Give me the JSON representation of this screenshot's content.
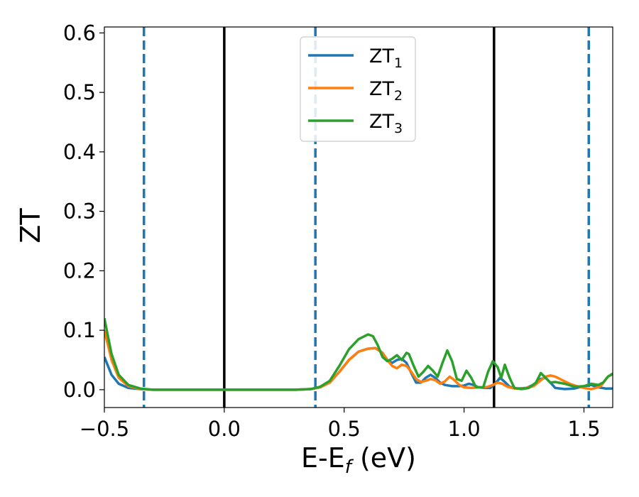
{
  "chart_data": {
    "type": "line",
    "title": "",
    "xlabel": {
      "main": "E-E",
      "sub": "f",
      "suffix": " (eV)"
    },
    "ylabel": "ZT",
    "xlim": [
      -0.5,
      1.62
    ],
    "ylim": [
      -0.03,
      0.61
    ],
    "x_ticks": [
      {
        "value": -0.5,
        "label": "−0.5"
      },
      {
        "value": 0.0,
        "label": "0.0"
      },
      {
        "value": 0.5,
        "label": "0.5"
      },
      {
        "value": 1.0,
        "label": "1.0"
      },
      {
        "value": 1.5,
        "label": "1.5"
      }
    ],
    "y_ticks": [
      {
        "value": 0.0,
        "label": "0.0"
      },
      {
        "value": 0.1,
        "label": "0.1"
      },
      {
        "value": 0.2,
        "label": "0.2"
      },
      {
        "value": 0.3,
        "label": "0.3"
      },
      {
        "value": 0.4,
        "label": "0.4"
      },
      {
        "value": 0.5,
        "label": "0.5"
      },
      {
        "value": 0.6,
        "label": "0.6"
      }
    ],
    "grid": false,
    "legend_position": "top-center",
    "vertical_lines": [
      {
        "x": -0.335,
        "style": "dashed",
        "color": "#1f77b4"
      },
      {
        "x": 0.0,
        "style": "solid",
        "color": "#000000"
      },
      {
        "x": 0.38,
        "style": "dashed",
        "color": "#1f77b4"
      },
      {
        "x": 1.125,
        "style": "solid",
        "color": "#000000"
      },
      {
        "x": 1.52,
        "style": "dashed",
        "color": "#1f77b4"
      }
    ],
    "series": [
      {
        "name": "ZT",
        "name_sub": "1",
        "color": "#1f77b4",
        "points": [
          [
            -0.5,
            0.055
          ],
          [
            -0.47,
            0.025
          ],
          [
            -0.44,
            0.01
          ],
          [
            -0.4,
            0.003
          ],
          [
            -0.35,
            0.001
          ],
          [
            -0.3,
            0.0
          ],
          [
            0.0,
            0.0
          ],
          [
            0.3,
            0.0
          ],
          [
            0.36,
            0.001
          ],
          [
            0.4,
            0.004
          ],
          [
            0.44,
            0.012
          ],
          [
            0.48,
            0.03
          ],
          [
            0.52,
            0.05
          ],
          [
            0.56,
            0.064
          ],
          [
            0.6,
            0.069
          ],
          [
            0.63,
            0.07
          ],
          [
            0.66,
            0.062
          ],
          [
            0.68,
            0.05
          ],
          [
            0.7,
            0.045
          ],
          [
            0.72,
            0.05
          ],
          [
            0.74,
            0.052
          ],
          [
            0.76,
            0.045
          ],
          [
            0.78,
            0.028
          ],
          [
            0.8,
            0.012
          ],
          [
            0.82,
            0.012
          ],
          [
            0.84,
            0.02
          ],
          [
            0.86,
            0.025
          ],
          [
            0.88,
            0.02
          ],
          [
            0.9,
            0.012
          ],
          [
            0.92,
            0.008
          ],
          [
            0.95,
            0.006
          ],
          [
            0.98,
            0.006
          ],
          [
            1.0,
            0.007
          ],
          [
            1.02,
            0.01
          ],
          [
            1.04,
            0.008
          ],
          [
            1.06,
            0.004
          ],
          [
            1.09,
            0.003
          ],
          [
            1.11,
            0.003
          ],
          [
            1.13,
            0.01
          ],
          [
            1.15,
            0.02
          ],
          [
            1.17,
            0.013
          ],
          [
            1.19,
            0.005
          ],
          [
            1.22,
            0.002
          ],
          [
            1.26,
            0.003
          ],
          [
            1.3,
            0.01
          ],
          [
            1.32,
            0.018
          ],
          [
            1.34,
            0.02
          ],
          [
            1.36,
            0.012
          ],
          [
            1.38,
            0.003
          ],
          [
            1.42,
            0.001
          ],
          [
            1.46,
            0.002
          ],
          [
            1.5,
            0.006
          ],
          [
            1.53,
            0.008
          ],
          [
            1.56,
            0.004
          ],
          [
            1.59,
            0.002
          ],
          [
            1.62,
            0.002
          ]
        ]
      },
      {
        "name": "ZT",
        "name_sub": "2",
        "color": "#ff7f0e",
        "points": [
          [
            -0.5,
            0.1
          ],
          [
            -0.47,
            0.05
          ],
          [
            -0.44,
            0.02
          ],
          [
            -0.4,
            0.006
          ],
          [
            -0.35,
            0.001
          ],
          [
            -0.3,
            0.0
          ],
          [
            0.0,
            0.0
          ],
          [
            0.3,
            0.0
          ],
          [
            0.36,
            0.001
          ],
          [
            0.4,
            0.004
          ],
          [
            0.44,
            0.012
          ],
          [
            0.48,
            0.03
          ],
          [
            0.52,
            0.05
          ],
          [
            0.56,
            0.064
          ],
          [
            0.6,
            0.069
          ],
          [
            0.63,
            0.07
          ],
          [
            0.66,
            0.062
          ],
          [
            0.68,
            0.05
          ],
          [
            0.7,
            0.04
          ],
          [
            0.72,
            0.036
          ],
          [
            0.74,
            0.042
          ],
          [
            0.76,
            0.04
          ],
          [
            0.78,
            0.03
          ],
          [
            0.8,
            0.018
          ],
          [
            0.82,
            0.013
          ],
          [
            0.84,
            0.015
          ],
          [
            0.86,
            0.018
          ],
          [
            0.88,
            0.016
          ],
          [
            0.9,
            0.01
          ],
          [
            0.92,
            0.014
          ],
          [
            0.94,
            0.022
          ],
          [
            0.96,
            0.016
          ],
          [
            0.98,
            0.008
          ],
          [
            1.0,
            0.004
          ],
          [
            1.03,
            0.003
          ],
          [
            1.06,
            0.004
          ],
          [
            1.08,
            0.004
          ],
          [
            1.1,
            0.005
          ],
          [
            1.12,
            0.008
          ],
          [
            1.14,
            0.012
          ],
          [
            1.16,
            0.01
          ],
          [
            1.18,
            0.005
          ],
          [
            1.21,
            0.002
          ],
          [
            1.25,
            0.002
          ],
          [
            1.29,
            0.006
          ],
          [
            1.32,
            0.016
          ],
          [
            1.34,
            0.022
          ],
          [
            1.36,
            0.024
          ],
          [
            1.38,
            0.022
          ],
          [
            1.41,
            0.016
          ],
          [
            1.44,
            0.01
          ],
          [
            1.47,
            0.006
          ],
          [
            1.5,
            0.003
          ],
          [
            1.53,
            0.001
          ],
          [
            1.55,
            0.003
          ],
          [
            1.57,
            0.006
          ],
          [
            1.6,
            0.022
          ],
          [
            1.62,
            0.026
          ]
        ]
      },
      {
        "name": "ZT",
        "name_sub": "3",
        "color": "#2ca02c",
        "points": [
          [
            -0.5,
            0.12
          ],
          [
            -0.47,
            0.06
          ],
          [
            -0.44,
            0.025
          ],
          [
            -0.4,
            0.008
          ],
          [
            -0.35,
            0.002
          ],
          [
            -0.3,
            0.0
          ],
          [
            0.0,
            0.0
          ],
          [
            0.3,
            0.0
          ],
          [
            0.36,
            0.001
          ],
          [
            0.4,
            0.005
          ],
          [
            0.44,
            0.015
          ],
          [
            0.48,
            0.04
          ],
          [
            0.52,
            0.068
          ],
          [
            0.56,
            0.085
          ],
          [
            0.6,
            0.093
          ],
          [
            0.62,
            0.09
          ],
          [
            0.64,
            0.075
          ],
          [
            0.66,
            0.055
          ],
          [
            0.68,
            0.048
          ],
          [
            0.7,
            0.052
          ],
          [
            0.72,
            0.058
          ],
          [
            0.74,
            0.05
          ],
          [
            0.76,
            0.062
          ],
          [
            0.77,
            0.06
          ],
          [
            0.79,
            0.04
          ],
          [
            0.81,
            0.022
          ],
          [
            0.83,
            0.03
          ],
          [
            0.85,
            0.04
          ],
          [
            0.87,
            0.032
          ],
          [
            0.89,
            0.022
          ],
          [
            0.91,
            0.045
          ],
          [
            0.93,
            0.066
          ],
          [
            0.95,
            0.048
          ],
          [
            0.97,
            0.018
          ],
          [
            0.99,
            0.015
          ],
          [
            1.01,
            0.032
          ],
          [
            1.03,
            0.02
          ],
          [
            1.05,
            0.004
          ],
          [
            1.08,
            0.004
          ],
          [
            1.1,
            0.03
          ],
          [
            1.12,
            0.048
          ],
          [
            1.14,
            0.038
          ],
          [
            1.155,
            0.02
          ],
          [
            1.17,
            0.042
          ],
          [
            1.19,
            0.02
          ],
          [
            1.21,
            0.003
          ],
          [
            1.24,
            0.001
          ],
          [
            1.27,
            0.003
          ],
          [
            1.3,
            0.012
          ],
          [
            1.32,
            0.028
          ],
          [
            1.34,
            0.02
          ],
          [
            1.36,
            0.012
          ],
          [
            1.38,
            0.013
          ],
          [
            1.42,
            0.01
          ],
          [
            1.46,
            0.005
          ],
          [
            1.5,
            0.006
          ],
          [
            1.53,
            0.01
          ],
          [
            1.56,
            0.008
          ],
          [
            1.58,
            0.012
          ],
          [
            1.6,
            0.022
          ],
          [
            1.62,
            0.027
          ]
        ]
      }
    ]
  }
}
